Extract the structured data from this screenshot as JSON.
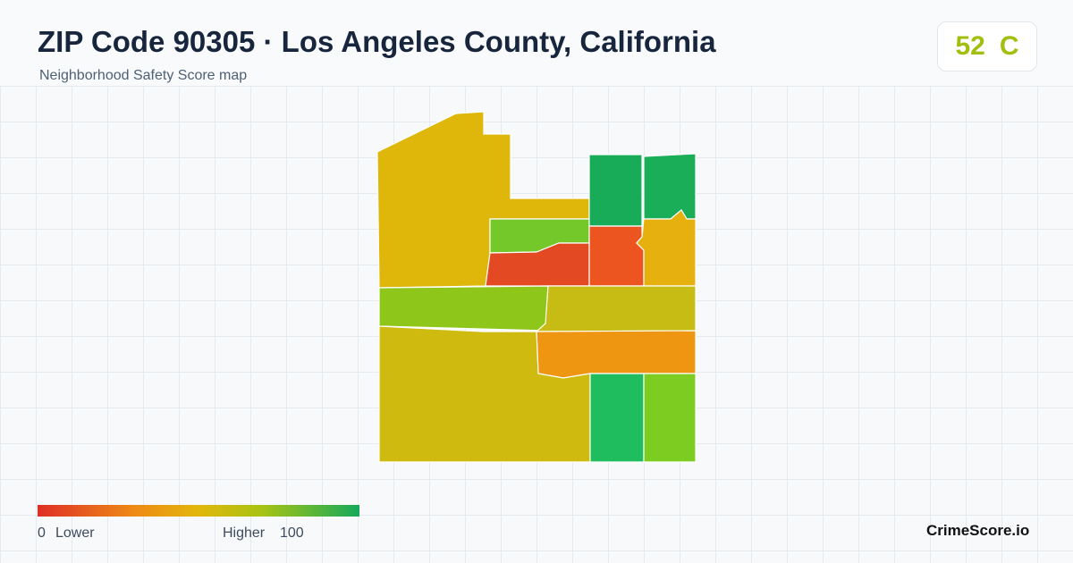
{
  "header": {
    "title": "ZIP Code 90305 · Los Angeles County, California",
    "subtitle": "Neighborhood Safety Score map"
  },
  "badge": {
    "score": 52,
    "grade": "C"
  },
  "legend": {
    "min": 0,
    "min_label": "Lower",
    "max_label": "Higher",
    "max": 100
  },
  "brand": "CrimeScore.io"
}
